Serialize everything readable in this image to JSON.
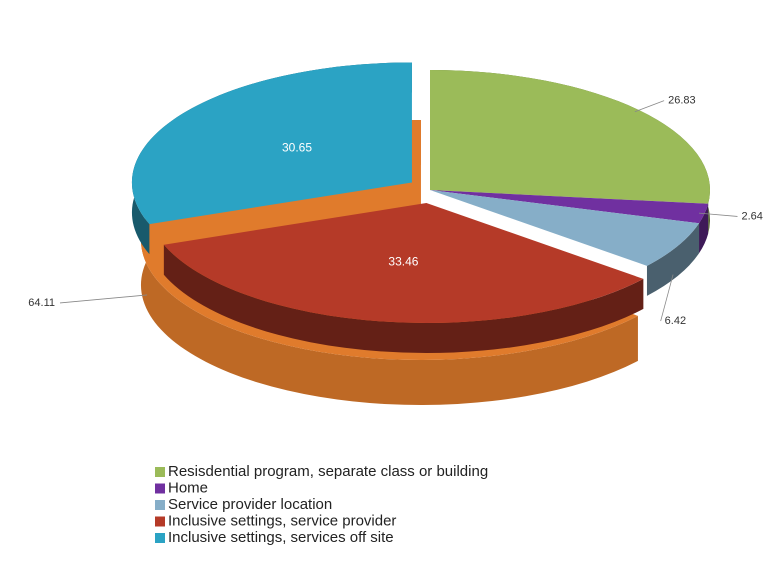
{
  "chart_data": {
    "type": "pie",
    "categories": [
      "Resisdential program, separate class or building",
      "Home",
      "Service provider location",
      "Inclusive settings, service provider",
      "Inclusive settings, services off site"
    ],
    "values": [
      26.83,
      2.64,
      6.42,
      33.46,
      30.65
    ],
    "colors": [
      "#9bbb59",
      "#7030a0",
      "#86aec8",
      "#b53a28",
      "#2ba3c4"
    ],
    "group": {
      "value": 64.11,
      "color": "#e07b2c"
    },
    "legend": "bottom"
  }
}
